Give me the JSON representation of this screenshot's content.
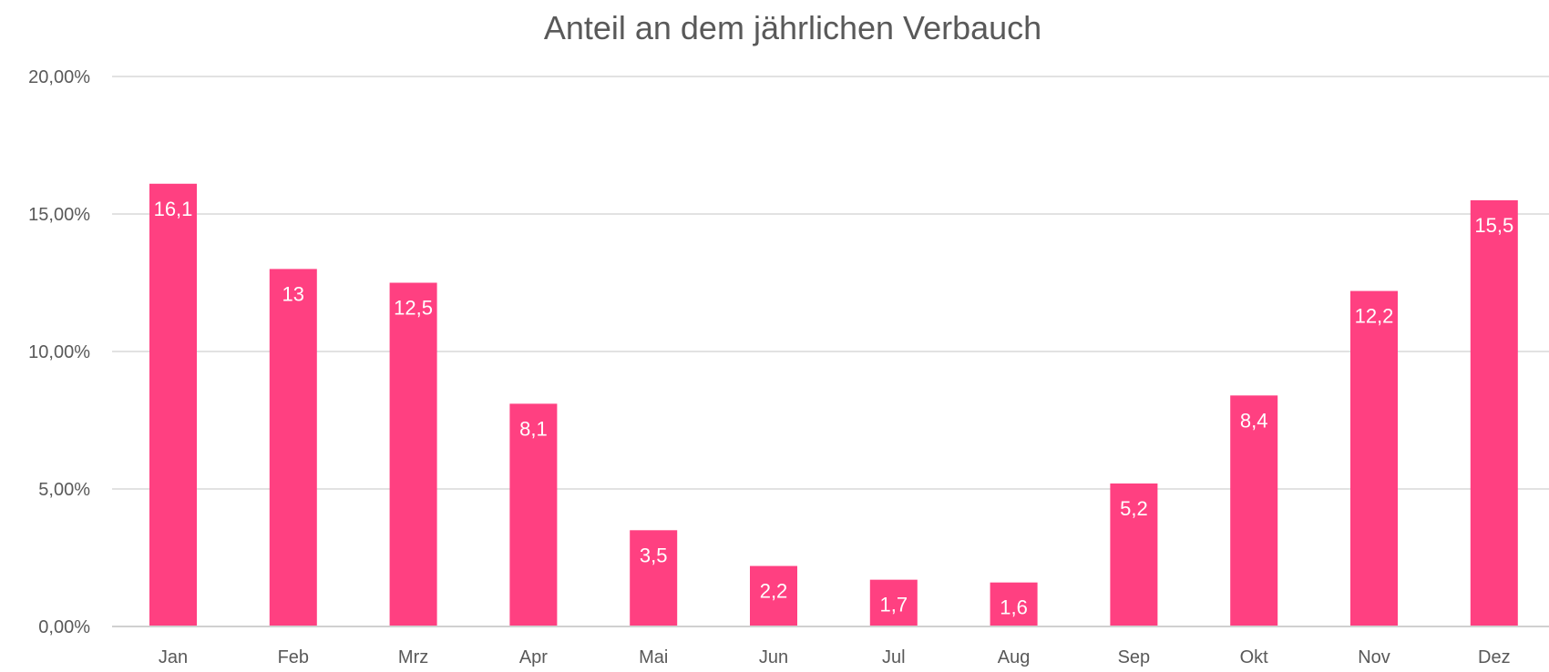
{
  "chart_data": {
    "type": "bar",
    "title": "Anteil an dem jährlichen Verbauch",
    "categories": [
      "Jan",
      "Feb",
      "Mrz",
      "Apr",
      "Mai",
      "Jun",
      "Jul",
      "Aug",
      "Sep",
      "Okt",
      "Nov",
      "Dez"
    ],
    "values": [
      16.1,
      13,
      12.5,
      8.1,
      3.5,
      2.2,
      1.7,
      1.6,
      5.2,
      8.4,
      12.2,
      15.5
    ],
    "data_labels": [
      "16,1",
      "13",
      "12,5",
      "8,1",
      "3,5",
      "2,2",
      "1,7",
      "1,6",
      "5,2",
      "8,4",
      "12,2",
      "15,5"
    ],
    "ylim": [
      0,
      20
    ],
    "yticks": [
      0,
      5,
      10,
      15,
      20
    ],
    "ytick_labels": [
      "0,00%",
      "5,00%",
      "10,00%",
      "15,00%",
      "20,00%"
    ],
    "xlabel": "",
    "ylabel": "",
    "grid": true,
    "legend": "none",
    "bar_color": "#ff4081"
  }
}
